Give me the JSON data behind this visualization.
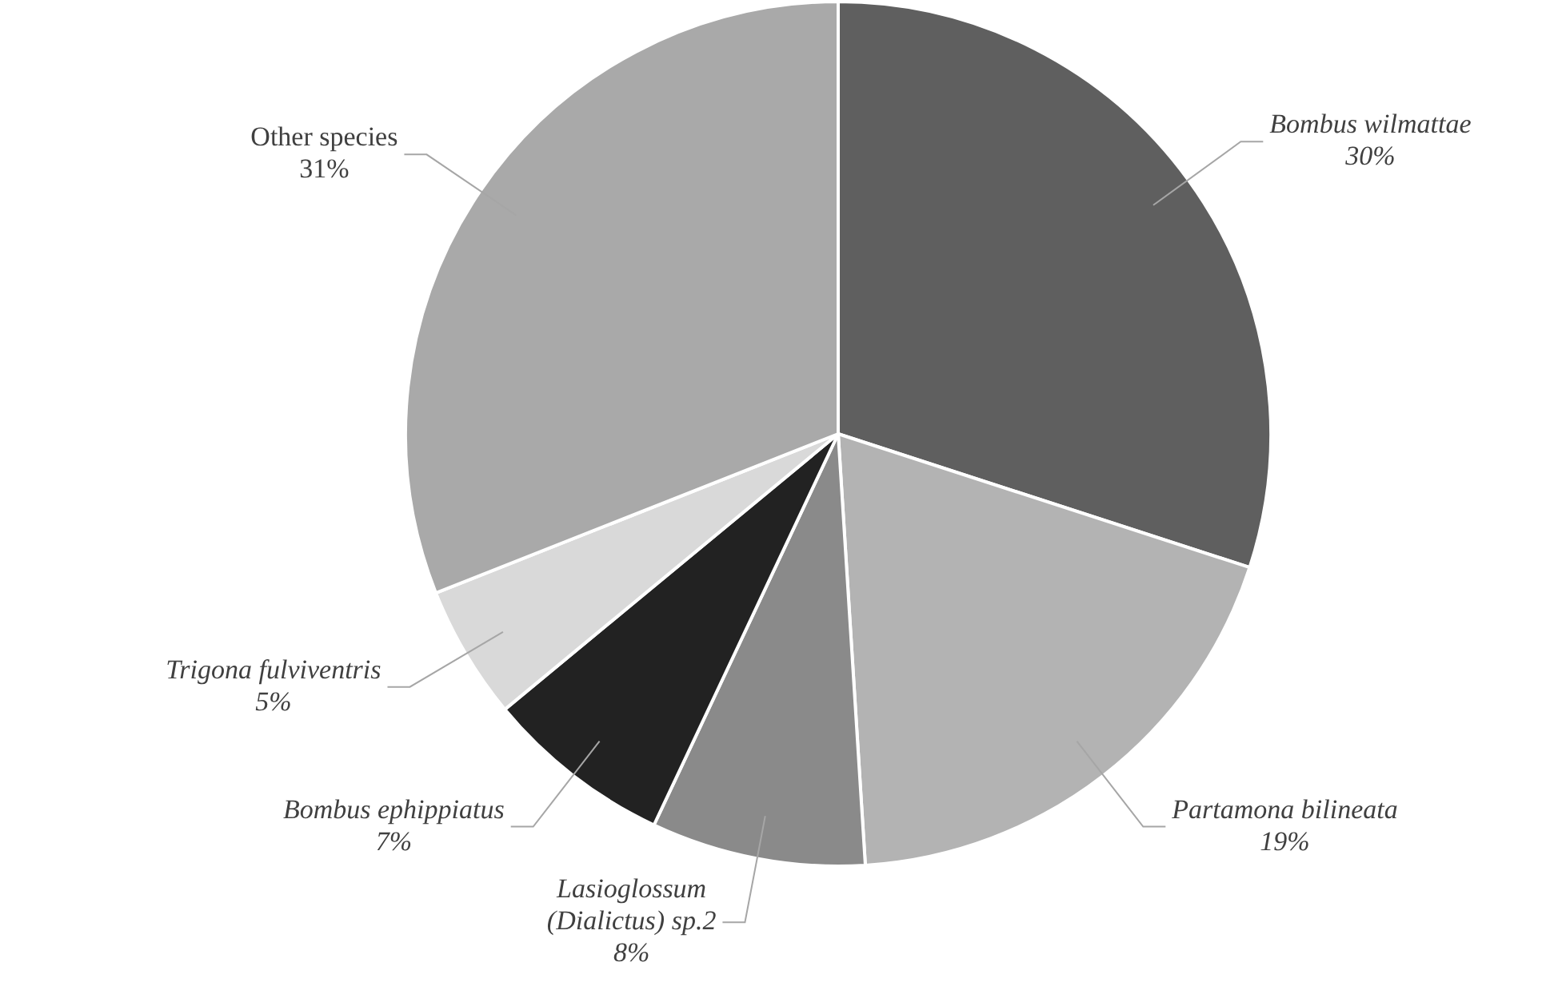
{
  "chart_data": {
    "type": "pie",
    "categories": [
      "Bombus wilmattae",
      "Partamona bilineata",
      "Lasioglossum (Dialictus) sp.2",
      "Bombus ephippiatus",
      "Trigona fulviventris",
      "Other species"
    ],
    "values": [
      30,
      19,
      8,
      7,
      5,
      31
    ],
    "colors": [
      "#5f5f5f",
      "#b3b3b3",
      "#8a8a8a",
      "#222222",
      "#d9d9d9",
      "#a9a9a9"
    ],
    "value_labels": [
      "30%",
      "19%",
      "8%",
      "7%",
      "5%",
      "31%"
    ],
    "legend": false
  }
}
